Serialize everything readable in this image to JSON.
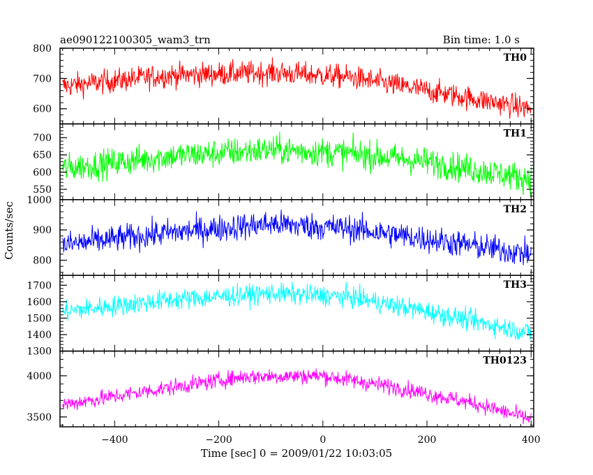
{
  "chart_data": {
    "type": "line",
    "title_left": "ae090122100305_wam3_trn",
    "title_right": "Bin time: 1.0 s",
    "xlabel": "Time [sec] 0 = 2009/01/22 10:03:05",
    "ylabel": "Counts/sec",
    "xlim": [
      -505,
      405
    ],
    "xticks": [
      -400,
      -200,
      0,
      200,
      400
    ],
    "bin_time": 1.0,
    "panels": [
      {
        "name": "TH0",
        "color": "#ff0000",
        "ylim": [
          550,
          800
        ],
        "yticks": [
          600,
          700,
          800
        ],
        "trend": {
          "x": [
            -500,
            -300,
            -100,
            50,
            200,
            400
          ],
          "y": [
            675,
            710,
            720,
            705,
            660,
            600
          ]
        },
        "noise": 28
      },
      {
        "name": "TH1",
        "color": "#00ff00",
        "ylim": [
          520,
          740
        ],
        "yticks": [
          550,
          600,
          650,
          700
        ],
        "trend": {
          "x": [
            -500,
            -300,
            -100,
            50,
            200,
            400
          ],
          "y": [
            610,
            645,
            665,
            655,
            630,
            580
          ]
        },
        "noise": 30
      },
      {
        "name": "TH2",
        "color": "#0000ff",
        "ylim": [
          750,
          1000
        ],
        "yticks": [
          800,
          900,
          1000
        ],
        "trend": {
          "x": [
            -500,
            -300,
            -100,
            50,
            200,
            400
          ],
          "y": [
            850,
            890,
            920,
            905,
            870,
            820
          ]
        },
        "noise": 32
      },
      {
        "name": "TH3",
        "color": "#00ffff",
        "ylim": [
          1300,
          1760
        ],
        "yticks": [
          1300,
          1400,
          1500,
          1600,
          1700
        ],
        "trend": {
          "x": [
            -500,
            -300,
            -100,
            50,
            200,
            400
          ],
          "y": [
            1540,
            1610,
            1650,
            1630,
            1540,
            1410
          ]
        },
        "noise": 45
      },
      {
        "name": "TH0123",
        "color": "#ff00ff",
        "ylim": [
          3380,
          4300
        ],
        "yticks": [
          3500,
          4000
        ],
        "trend": {
          "x": [
            -500,
            -300,
            -150,
            0,
            150,
            300,
            400
          ],
          "y": [
            3650,
            3850,
            3990,
            4000,
            3850,
            3650,
            3470
          ]
        },
        "noise": 70
      }
    ]
  }
}
